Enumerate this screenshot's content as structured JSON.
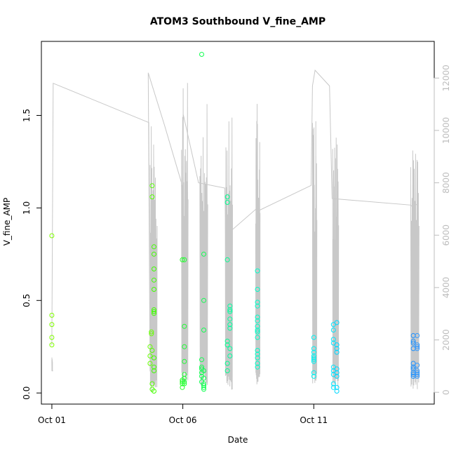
{
  "chart_data": {
    "type": "scatter",
    "title": "ATOM3 Southbound V_fine_AMP",
    "xlabel": "Date",
    "ylabel": "V_fine_AMP",
    "x_ticks": [
      {
        "label": "Oct 01",
        "day": 0
      },
      {
        "label": "Oct 06",
        "day": 5
      },
      {
        "label": "Oct 11",
        "day": 10
      }
    ],
    "y_ticks": [
      0.0,
      0.5,
      1.0,
      1.5
    ],
    "y_tick_labels": [
      "0.0",
      "0.5",
      "1.0",
      "1.5"
    ],
    "y2_ticks": [
      0,
      2000,
      4000,
      6000,
      8000,
      10000,
      12000
    ],
    "y2_tick_labels": [
      "0",
      "2000",
      "4000",
      "6000",
      "8000",
      "10000",
      "12000"
    ],
    "xlim_days": [
      -0.4,
      14.6
    ],
    "ylim": [
      -0.06,
      1.9
    ],
    "y2lim": [
      -450,
      13400
    ],
    "grid": false,
    "legend": "none",
    "colors": {
      "secondary_line": "#c8c8c8",
      "right_axis": "#bdbdbd",
      "frame": "#000000"
    },
    "points": [
      {
        "day": 0.0,
        "values": [
          0.85,
          0.42,
          0.37,
          0.3,
          0.26
        ],
        "color": "#80ff00"
      },
      {
        "day": 3.75,
        "values": [
          0.25,
          0.2,
          0.16
        ],
        "color": "#66ff00"
      },
      {
        "day": 3.8,
        "values": [
          0.33,
          0.32
        ],
        "color": "#66ff00"
      },
      {
        "day": 3.83,
        "values": [
          1.12,
          1.06,
          0.23,
          0.05,
          0.02
        ],
        "color": "#55ff00"
      },
      {
        "day": 3.9,
        "values": [
          0.79,
          0.75,
          0.67,
          0.61,
          0.56,
          0.45,
          0.44,
          0.43,
          0.19,
          0.14,
          0.12,
          0.01
        ],
        "color": "#40ff00"
      },
      {
        "day": 4.98,
        "values": [
          0.72,
          0.07,
          0.06,
          0.05,
          0.03
        ],
        "color": "#22ff22"
      },
      {
        "day": 5.06,
        "values": [
          0.72,
          0.36,
          0.25,
          0.17,
          0.1,
          0.08,
          0.06,
          0.05
        ],
        "color": "#1aff30"
      },
      {
        "day": 5.72,
        "values": [
          1.83,
          0.18,
          0.14,
          0.13,
          0.11,
          0.09,
          0.06
        ],
        "color": "#10ff50"
      },
      {
        "day": 5.8,
        "values": [
          0.75,
          0.5,
          0.34,
          0.12,
          0.08,
          0.05,
          0.04,
          0.03,
          0.02
        ],
        "color": "#10ff50"
      },
      {
        "day": 6.7,
        "values": [
          1.06,
          1.03,
          0.72,
          0.28,
          0.26,
          0.16,
          0.12
        ],
        "color": "#00ff90"
      },
      {
        "day": 6.8,
        "values": [
          0.47,
          0.45,
          0.44,
          0.4,
          0.37,
          0.35,
          0.24,
          0.2
        ],
        "color": "#00ffa0"
      },
      {
        "day": 7.85,
        "values": [
          0.66,
          0.56,
          0.49,
          0.47,
          0.41,
          0.39,
          0.36,
          0.34,
          0.33,
          0.3,
          0.23,
          0.21,
          0.19,
          0.16,
          0.14
        ],
        "color": "#00ffc8"
      },
      {
        "day": 10.0,
        "values": [
          0.3,
          0.24,
          0.22,
          0.2,
          0.19,
          0.18,
          0.17,
          0.11,
          0.09
        ],
        "color": "#00f2f2"
      },
      {
        "day": 10.75,
        "values": [
          0.37,
          0.34,
          0.29,
          0.27,
          0.14,
          0.12,
          0.1,
          0.05,
          0.03
        ],
        "color": "#00e5ff"
      },
      {
        "day": 10.88,
        "values": [
          0.38,
          0.26,
          0.24,
          0.22,
          0.13,
          0.11,
          0.09,
          0.03,
          0.01
        ],
        "color": "#00d8ff"
      },
      {
        "day": 13.8,
        "values": [
          0.31,
          0.28,
          0.27,
          0.24,
          0.16,
          0.14,
          0.13,
          0.11,
          0.1,
          0.09
        ],
        "color": "#1a90ff"
      },
      {
        "day": 13.95,
        "values": [
          0.31,
          0.26,
          0.25,
          0.24,
          0.15,
          0.12,
          0.11,
          0.1,
          0.09
        ],
        "color": "#3399ff"
      }
    ],
    "secondary_series": {
      "path": [
        [
          0.0,
          1800
        ],
        [
          0.05,
          11800
        ],
        [
          3.7,
          10300
        ],
        [
          3.72,
          6400
        ],
        [
          3.75,
          800
        ],
        [
          3.68,
          12200
        ],
        [
          4.3,
          10200
        ],
        [
          4.95,
          8000
        ],
        [
          5.0,
          6200
        ],
        [
          5.02,
          10600
        ],
        [
          5.6,
          8000
        ],
        [
          6.6,
          7800
        ],
        [
          6.65,
          6000
        ],
        [
          7.8,
          7000
        ],
        [
          7.82,
          6900
        ],
        [
          9.9,
          7900
        ],
        [
          9.95,
          11700
        ],
        [
          10.05,
          12300
        ],
        [
          10.6,
          11700
        ],
        [
          10.7,
          7400
        ],
        [
          13.7,
          7150
        ],
        [
          13.75,
          7100
        ],
        [
          14.0,
          7200
        ]
      ],
      "bursts": [
        {
          "start": 0.0,
          "end": 0.03,
          "min": 800,
          "max": 1400
        },
        {
          "start": 3.75,
          "end": 4.02,
          "min": 0,
          "max": 10600
        },
        {
          "start": 4.95,
          "end": 5.2,
          "min": 300,
          "max": 12200
        },
        {
          "start": 5.65,
          "end": 5.95,
          "min": 200,
          "max": 11800
        },
        {
          "start": 6.62,
          "end": 6.9,
          "min": 100,
          "max": 11700
        },
        {
          "start": 7.78,
          "end": 7.95,
          "min": 200,
          "max": 11100
        },
        {
          "start": 9.95,
          "end": 10.12,
          "min": 300,
          "max": 10600
        },
        {
          "start": 10.72,
          "end": 10.95,
          "min": 100,
          "max": 10200
        },
        {
          "start": 13.7,
          "end": 14.02,
          "min": 100,
          "max": 10100
        }
      ]
    }
  }
}
